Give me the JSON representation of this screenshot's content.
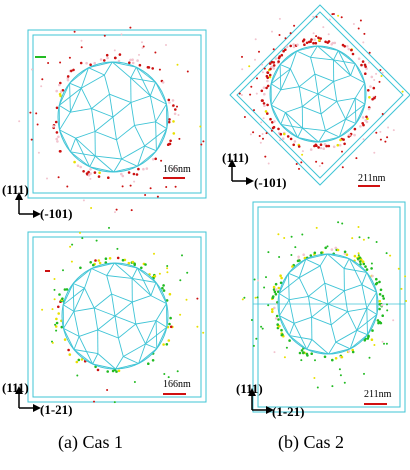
{
  "panels": [
    {
      "id": "cas1-top",
      "axis_up": "(111)",
      "axis_right": "(-101)",
      "scale": "166nm",
      "dot_colors": [
        "#cc1111",
        "#f2c4cf",
        "#e8e000"
      ]
    },
    {
      "id": "cas2-top",
      "axis_up": "(111)",
      "axis_right": "(-101)",
      "scale": "211nm",
      "dot_colors": [
        "#cc1111",
        "#f2c4cf",
        "#e8e000"
      ]
    },
    {
      "id": "cas1-bottom",
      "axis_up": "(111)",
      "axis_right": "(1-21)",
      "scale": "166nm",
      "dot_colors": [
        "#22bb22",
        "#e8e000",
        "#cc1111"
      ]
    },
    {
      "id": "cas2-bottom",
      "axis_up": "(111)",
      "axis_right": "(1-21)",
      "scale": "211nm",
      "dot_colors": [
        "#22bb22",
        "#e8e000",
        "#f2c4cf"
      ]
    }
  ],
  "captions": {
    "left": "(a)  Cas 1",
    "right": "(b)  Cas 2"
  },
  "colors": {
    "mesh": "#3fc4d6",
    "scale_bar": "#d01010",
    "box": "#3fc4d6"
  }
}
